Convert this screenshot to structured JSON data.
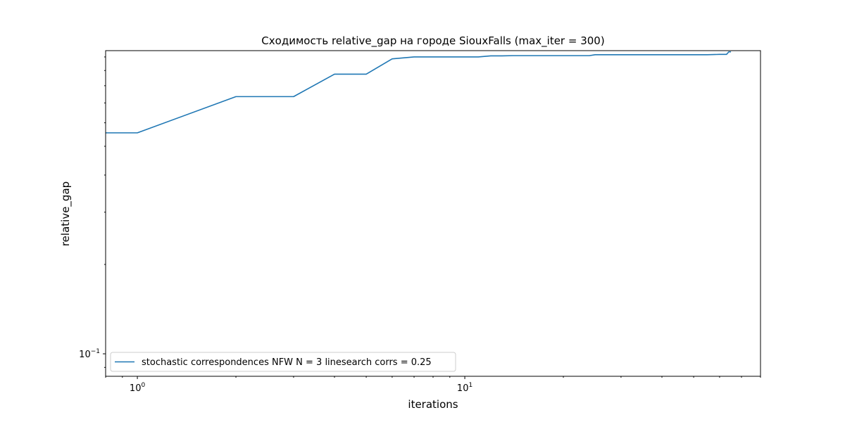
{
  "chart_data": {
    "type": "line",
    "title": "Сходимость relative_gap на городе SiouxFalls  (max_iter = 300)",
    "xlabel": "iterations",
    "ylabel": "relative_gap",
    "x_scale": "log",
    "y_scale": "log",
    "xlim": [
      0.8,
      80
    ],
    "ylim": [
      0.084,
      1.05
    ],
    "x_tick_labels": [
      {
        "value": 1,
        "label": "10^0"
      },
      {
        "value": 10,
        "label": "10^1"
      }
    ],
    "y_tick_labels": [
      {
        "value": 0.1,
        "label": "10^-1"
      }
    ],
    "grid": false,
    "legend_position": "lower-left",
    "series": [
      {
        "name": "stochastic correspondences NFW N = 3 linesearch corrs = 0.25",
        "color": "#1f77b4",
        "x": [
          0.8,
          1,
          2,
          3,
          4,
          5,
          6,
          7,
          8,
          9,
          10,
          11,
          12,
          13,
          14,
          16,
          18,
          20,
          22,
          24,
          25,
          30,
          35,
          40,
          45,
          50,
          55,
          60,
          63,
          64,
          65
        ],
        "y": [
          0.555,
          0.555,
          0.735,
          0.735,
          0.875,
          0.875,
          0.985,
          1.0,
          1.0,
          1.0,
          1.0,
          1.0,
          1.008,
          1.008,
          1.01,
          1.01,
          1.01,
          1.01,
          1.01,
          1.01,
          1.017,
          1.017,
          1.017,
          1.017,
          1.017,
          1.017,
          1.017,
          1.02,
          1.02,
          1.04,
          1.04
        ]
      }
    ]
  }
}
